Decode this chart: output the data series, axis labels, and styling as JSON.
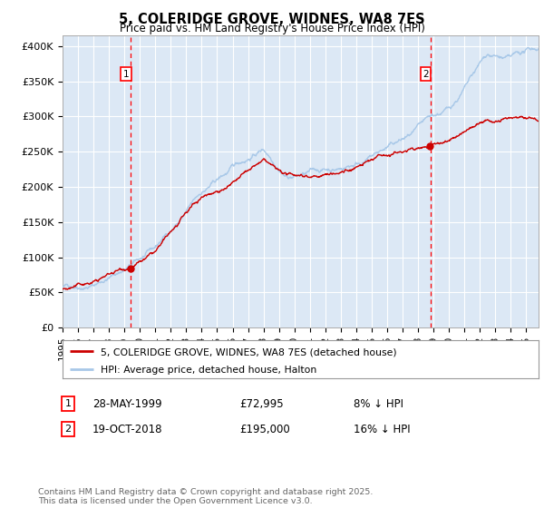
{
  "title": "5, COLERIDGE GROVE, WIDNES, WA8 7ES",
  "subtitle": "Price paid vs. HM Land Registry's House Price Index (HPI)",
  "ylabel_ticks": [
    "£0",
    "£50K",
    "£100K",
    "£150K",
    "£200K",
    "£250K",
    "£300K",
    "£350K",
    "£400K"
  ],
  "ytick_values": [
    0,
    50000,
    100000,
    150000,
    200000,
    250000,
    300000,
    350000,
    400000
  ],
  "ylim": [
    0,
    415000
  ],
  "xlim_start": 1995.0,
  "xlim_end": 2025.8,
  "hpi_color": "#a8c8e8",
  "price_color": "#cc0000",
  "dot_color": "#cc0000",
  "marker1_date_x": 1999.41,
  "marker1_price": 72995,
  "marker2_date_x": 2018.8,
  "marker2_price": 195000,
  "bg_color": "#dce8f5",
  "grid_color": "#ffffff",
  "legend_label1": "5, COLERIDGE GROVE, WIDNES, WA8 7ES (detached house)",
  "legend_label2": "HPI: Average price, detached house, Halton",
  "ann1_num": "1",
  "ann1_date": "28-MAY-1999",
  "ann1_price": "£72,995",
  "ann1_hpi": "8% ↓ HPI",
  "ann2_num": "2",
  "ann2_date": "19-OCT-2018",
  "ann2_price": "£195,000",
  "ann2_hpi": "16% ↓ HPI",
  "footer": "Contains HM Land Registry data © Crown copyright and database right 2025.\nThis data is licensed under the Open Government Licence v3.0."
}
